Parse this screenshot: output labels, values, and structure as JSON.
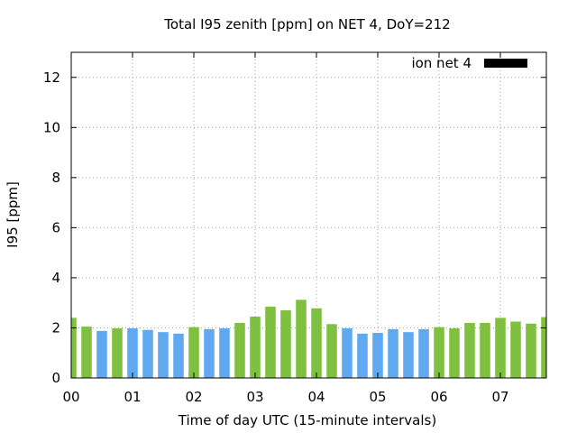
{
  "chart_data": {
    "type": "bar",
    "title": "Total I95 zenith [ppm] on NET 4, DoY=212",
    "xlabel": "Time of day UTC (15-minute intervals)",
    "ylabel": "I95 [ppm]",
    "x_unit": "hours UTC",
    "xlim": [
      0,
      7.75
    ],
    "ylim": [
      0,
      13
    ],
    "yticks": [
      0,
      2,
      4,
      6,
      8,
      10,
      12
    ],
    "xticks": [
      {
        "value": 0,
        "label": "00"
      },
      {
        "value": 1,
        "label": "01"
      },
      {
        "value": 2,
        "label": "02"
      },
      {
        "value": 3,
        "label": "03"
      },
      {
        "value": 4,
        "label": "04"
      },
      {
        "value": 5,
        "label": "05"
      },
      {
        "value": 6,
        "label": "06"
      },
      {
        "value": 7,
        "label": "07"
      }
    ],
    "grid": true,
    "legend_position": "top-right",
    "series": [
      {
        "name": "ion net 4",
        "legend_color": "#000000",
        "x": [
          0,
          0.25,
          0.5,
          0.75,
          1,
          1.25,
          1.5,
          1.75,
          2,
          2.25,
          2.5,
          2.75,
          3,
          3.25,
          3.5,
          3.75,
          4,
          4.25,
          4.5,
          4.75,
          5,
          5.25,
          5.5,
          5.75,
          6,
          6.25,
          6.5,
          6.75,
          7,
          7.25,
          7.5,
          7.75
        ],
        "values": [
          2.4,
          2.05,
          1.88,
          1.98,
          1.98,
          1.92,
          1.83,
          1.77,
          2.03,
          1.95,
          1.98,
          2.2,
          2.45,
          2.85,
          2.7,
          3.12,
          2.78,
          2.15,
          1.98,
          1.77,
          1.8,
          1.95,
          1.83,
          1.95,
          2.03,
          1.98,
          2.2,
          2.2,
          2.4,
          2.25,
          2.17,
          2.43
        ],
        "colors": [
          "#80c040",
          "#80c040",
          "#60a8f0",
          "#80c040",
          "#60a8f0",
          "#60a8f0",
          "#60a8f0",
          "#60a8f0",
          "#80c040",
          "#60a8f0",
          "#60a8f0",
          "#80c040",
          "#80c040",
          "#80c040",
          "#80c040",
          "#80c040",
          "#80c040",
          "#80c040",
          "#60a8f0",
          "#60a8f0",
          "#60a8f0",
          "#60a8f0",
          "#60a8f0",
          "#60a8f0",
          "#80c040",
          "#80c040",
          "#80c040",
          "#80c040",
          "#80c040",
          "#80c040",
          "#80c040",
          "#80c040"
        ]
      }
    ]
  }
}
